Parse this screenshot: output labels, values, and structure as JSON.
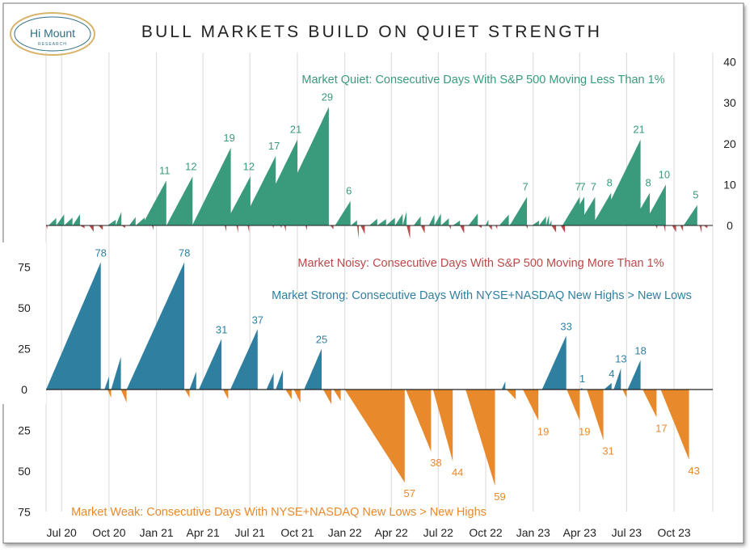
{
  "title": "BULL MARKETS BUILD ON QUIET STRENGTH",
  "logo": {
    "name": "Hi Mount",
    "sub": "RESEARCH"
  },
  "colors": {
    "quiet": "#3a9a7c",
    "noisy": "#b84a4a",
    "strong": "#2f7fa0",
    "weak": "#e8892b",
    "grid": "#d9d9d9",
    "axis": "#222222"
  },
  "chart_data": [
    {
      "type": "area",
      "panel": "top",
      "yaxis_side": "right",
      "ylim": [
        -4,
        40
      ],
      "yticks": [
        0,
        10,
        20,
        30,
        40
      ],
      "series": [
        {
          "name": "Market Quiet: Consecutive Days With S&P 500 Moving Less Than 1%",
          "sign": "positive"
        },
        {
          "name": "Market Noisy: Consecutive Days With S&P 500 Moving More Than 1%",
          "sign": "negative"
        }
      ],
      "peak_labels": [
        {
          "date": "2021-01-20",
          "value": 11
        },
        {
          "date": "2021-03-12",
          "value": 12
        },
        {
          "date": "2021-05-25",
          "value": 19
        },
        {
          "date": "2021-07-02",
          "value": 12
        },
        {
          "date": "2021-08-20",
          "value": 17
        },
        {
          "date": "2021-10-01",
          "value": 21
        },
        {
          "date": "2021-12-01",
          "value": 29
        },
        {
          "date": "2022-01-12",
          "value": 6
        },
        {
          "date": "2022-12-20",
          "value": 7
        },
        {
          "date": "2023-04-01",
          "value": 7
        },
        {
          "date": "2023-04-10",
          "value": 7
        },
        {
          "date": "2023-05-01",
          "value": 7
        },
        {
          "date": "2023-06-01",
          "value": 8
        },
        {
          "date": "2023-07-28",
          "value": 21
        },
        {
          "date": "2023-08-15",
          "value": 8
        },
        {
          "date": "2023-09-15",
          "value": 10
        },
        {
          "date": "2023-11-15",
          "value": 5
        }
      ]
    },
    {
      "type": "area",
      "panel": "bottom",
      "yaxis_side": "left",
      "ylim": [
        -75,
        80
      ],
      "yticks": [
        {
          "value": 75,
          "label": "75"
        },
        {
          "value": 50,
          "label": "50"
        },
        {
          "value": 25,
          "label": "25"
        },
        {
          "value": 0,
          "label": "0"
        },
        {
          "value": -25,
          "label": "25"
        },
        {
          "value": -50,
          "label": "50"
        },
        {
          "value": -75,
          "label": "75"
        }
      ],
      "series": [
        {
          "name": "Market Strong: Consecutive Days With NYSE+NASDAQ New Highs > New Lows",
          "sign": "positive"
        },
        {
          "name": "Market Weak: Consecutive Days With NYSE+NASDAQ New Lows > New Highs",
          "sign": "negative"
        }
      ],
      "strong_runs": [
        {
          "start": "2020-06-01",
          "end": "2020-09-15",
          "peak": 78
        },
        {
          "start": "2020-09-22",
          "end": "2020-10-01",
          "peak": 8
        },
        {
          "start": "2020-10-05",
          "end": "2020-10-24",
          "peak": 20
        },
        {
          "start": "2020-11-04",
          "end": "2021-02-24",
          "peak": 78
        },
        {
          "start": "2021-03-06",
          "end": "2021-03-19",
          "peak": 11
        },
        {
          "start": "2021-03-24",
          "end": "2021-05-07",
          "peak": 31
        },
        {
          "start": "2021-05-24",
          "end": "2021-07-16",
          "peak": 37
        },
        {
          "start": "2021-08-02",
          "end": "2021-08-16",
          "peak": 10
        },
        {
          "start": "2021-08-20",
          "end": "2021-09-03",
          "peak": 12
        },
        {
          "start": "2021-10-14",
          "end": "2021-11-17",
          "peak": 25
        },
        {
          "start": "2022-11-01",
          "end": "2022-11-08",
          "peak": 5
        },
        {
          "start": "2023-01-18",
          "end": "2023-03-06",
          "peak": 33
        },
        {
          "start": "2023-04-01",
          "end": "2023-04-06",
          "peak": 1
        },
        {
          "start": "2023-05-18",
          "end": "2023-06-02",
          "peak": 4
        },
        {
          "start": "2023-06-06",
          "end": "2023-06-20",
          "peak": 13
        },
        {
          "start": "2023-07-03",
          "end": "2023-07-28",
          "peak": 18
        }
      ],
      "weak_runs": [
        {
          "start": "2020-09-28",
          "end": "2020-10-05",
          "peak": 5
        },
        {
          "start": "2020-10-24",
          "end": "2020-11-04",
          "peak": 8
        },
        {
          "start": "2021-02-25",
          "end": "2021-03-06",
          "peak": 5
        },
        {
          "start": "2021-05-10",
          "end": "2021-05-20",
          "peak": 6
        },
        {
          "start": "2021-09-08",
          "end": "2021-09-20",
          "peak": 6
        },
        {
          "start": "2021-09-24",
          "end": "2021-10-07",
          "peak": 8
        },
        {
          "start": "2021-11-20",
          "end": "2021-12-06",
          "peak": 9
        },
        {
          "start": "2021-12-10",
          "end": "2021-12-24",
          "peak": 7
        },
        {
          "start": "2022-01-01",
          "end": "2022-04-27",
          "peak": 57
        },
        {
          "start": "2022-04-29",
          "end": "2022-06-17",
          "peak": 38
        },
        {
          "start": "2022-06-21",
          "end": "2022-07-29",
          "peak": 44
        },
        {
          "start": "2022-08-23",
          "end": "2022-10-19",
          "peak": 59
        },
        {
          "start": "2022-11-10",
          "end": "2022-11-28",
          "peak": 6
        },
        {
          "start": "2022-12-12",
          "end": "2023-01-11",
          "peak": 19
        },
        {
          "start": "2023-03-07",
          "end": "2023-04-01",
          "peak": 19
        },
        {
          "start": "2023-04-15",
          "end": "2023-05-17",
          "peak": 31
        },
        {
          "start": "2023-06-23",
          "end": "2023-07-01",
          "peak": 5
        },
        {
          "start": "2023-08-01",
          "end": "2023-08-28",
          "peak": 17
        },
        {
          "start": "2023-09-05",
          "end": "2023-10-30",
          "peak": 43
        }
      ],
      "peak_labels": [
        {
          "date": "2020-09-15",
          "value": 78,
          "label": "78",
          "series": "strong"
        },
        {
          "date": "2021-02-24",
          "value": 78,
          "label": "78",
          "series": "strong"
        },
        {
          "date": "2021-05-07",
          "value": 31,
          "label": "31",
          "series": "strong"
        },
        {
          "date": "2021-07-16",
          "value": 37,
          "label": "37",
          "series": "strong"
        },
        {
          "date": "2021-11-17",
          "value": 25,
          "label": "25",
          "series": "strong"
        },
        {
          "date": "2023-03-06",
          "value": 33,
          "label": "33",
          "series": "strong"
        },
        {
          "date": "2023-04-06",
          "value": 1,
          "label": "1",
          "series": "strong"
        },
        {
          "date": "2023-06-02",
          "value": 4,
          "label": "4",
          "series": "strong"
        },
        {
          "date": "2023-06-20",
          "value": 13,
          "label": "13",
          "series": "strong"
        },
        {
          "date": "2023-07-28",
          "value": 18,
          "label": "18",
          "series": "strong"
        },
        {
          "date": "2022-04-27",
          "value": -57,
          "label": "57",
          "series": "weak"
        },
        {
          "date": "2022-06-17",
          "value": -38,
          "label": "38",
          "series": "weak"
        },
        {
          "date": "2022-07-29",
          "value": -44,
          "label": "44",
          "series": "weak"
        },
        {
          "date": "2022-10-19",
          "value": -59,
          "label": "59",
          "series": "weak"
        },
        {
          "date": "2023-01-11",
          "value": -19,
          "label": "19",
          "series": "weak"
        },
        {
          "date": "2023-04-01",
          "value": -19,
          "label": "19",
          "series": "weak"
        },
        {
          "date": "2023-05-17",
          "value": -31,
          "label": "31",
          "series": "weak"
        },
        {
          "date": "2023-08-28",
          "value": -17,
          "label": "17",
          "series": "weak"
        },
        {
          "date": "2023-10-30",
          "value": -43,
          "label": "43",
          "series": "weak"
        }
      ]
    }
  ],
  "x_axis": {
    "ticks": [
      {
        "date": "2020-07-01",
        "label": "Jul 20"
      },
      {
        "date": "2020-10-01",
        "label": "Oct 20"
      },
      {
        "date": "2021-01-01",
        "label": "Jan 21"
      },
      {
        "date": "2021-04-01",
        "label": "Apr 21"
      },
      {
        "date": "2021-07-01",
        "label": "Jul 21"
      },
      {
        "date": "2021-10-01",
        "label": "Oct 21"
      },
      {
        "date": "2022-01-01",
        "label": "Jan 22"
      },
      {
        "date": "2022-04-01",
        "label": "Apr 22"
      },
      {
        "date": "2022-07-01",
        "label": "Jul 22"
      },
      {
        "date": "2022-10-01",
        "label": "Oct 22"
      },
      {
        "date": "2023-01-01",
        "label": "Jan 23"
      },
      {
        "date": "2023-04-01",
        "label": "Apr 23"
      },
      {
        "date": "2023-07-01",
        "label": "Jul 23"
      },
      {
        "date": "2023-10-01",
        "label": "Oct 23"
      }
    ]
  }
}
